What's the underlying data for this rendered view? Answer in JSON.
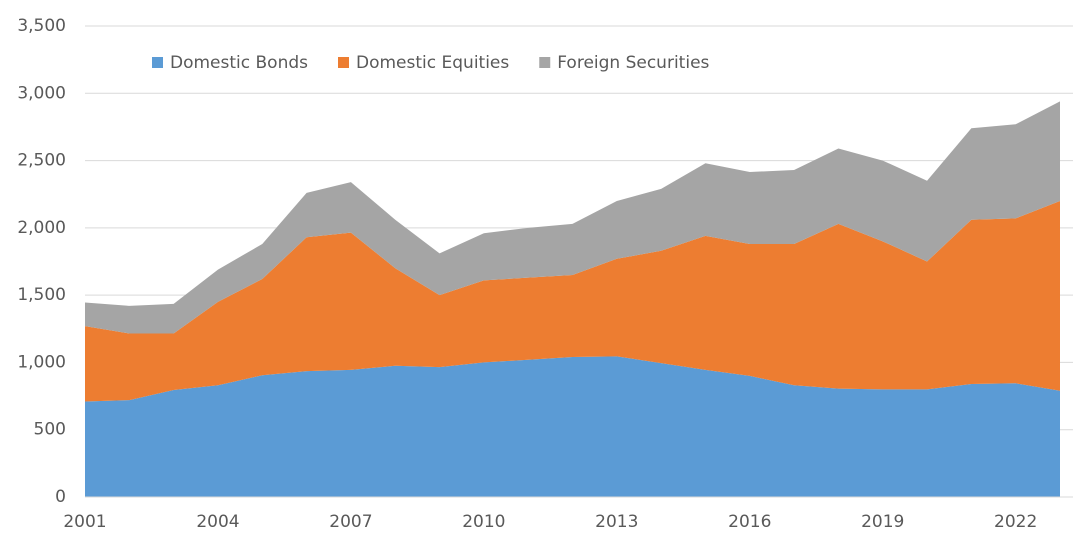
{
  "chart_data": {
    "type": "stacked_area",
    "x": [
      2001,
      2002,
      2003,
      2004,
      2005,
      2006,
      2007,
      2008,
      2009,
      2010,
      2011,
      2012,
      2013,
      2014,
      2015,
      2016,
      2017,
      2018,
      2019,
      2020,
      2021,
      2022,
      2023
    ],
    "series": [
      {
        "name": "Domestic Bonds",
        "color": "#5b9bd5",
        "values": [
          710,
          720,
          795,
          830,
          905,
          935,
          945,
          975,
          965,
          1000,
          1020,
          1040,
          1045,
          995,
          945,
          900,
          830,
          805,
          800,
          800,
          840,
          845,
          790
        ]
      },
      {
        "name": "Domestic Equities",
        "color": "#ed7d31",
        "values": [
          560,
          495,
          420,
          620,
          715,
          995,
          1020,
          725,
          535,
          610,
          610,
          610,
          725,
          835,
          995,
          980,
          1050,
          1225,
          1100,
          950,
          1220,
          1225,
          1410
        ]
      },
      {
        "name": "Foreign Securities",
        "color": "#a5a5a5",
        "values": [
          175,
          205,
          220,
          240,
          260,
          330,
          375,
          360,
          310,
          350,
          370,
          380,
          430,
          460,
          540,
          535,
          550,
          560,
          600,
          600,
          680,
          700,
          740
        ]
      }
    ],
    "xlim": [
      2001,
      2023
    ],
    "xticks": [
      2001,
      2004,
      2007,
      2010,
      2013,
      2016,
      2019,
      2022
    ],
    "ylim": [
      0,
      3500
    ],
    "yticks": [
      0,
      500,
      {
        "value": 1000,
        "label": "1,000"
      },
      {
        "value": 1500,
        "label": "1,500"
      },
      {
        "value": 2000,
        "label": "2,000"
      },
      {
        "value": 2500,
        "label": "2,500"
      },
      {
        "value": 3000,
        "label": "3,000"
      },
      {
        "value": 3500,
        "label": "3,500"
      }
    ],
    "grid": true,
    "legend": "top"
  }
}
